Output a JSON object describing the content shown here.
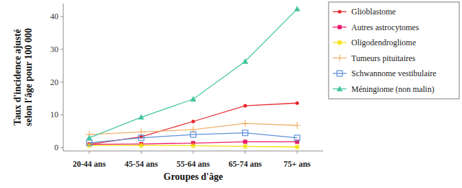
{
  "chart_data": {
    "type": "line",
    "x_label": "Groupes d'âge",
    "y_label": "Taux d'incidence ajusté selon l'âge pour 100 000",
    "categories": [
      "20-44 ans",
      "45-54 ans",
      "55-64 ans",
      "65-74 ans",
      "75+ ans"
    ],
    "series": [
      {
        "name": "Glioblastome",
        "color": "#e8262d",
        "marker": "circle",
        "values": [
          1.0,
          3.3,
          8.0,
          12.8,
          13.6
        ]
      },
      {
        "name": "Autres astrocytomes",
        "color": "#e8176b",
        "marker": "square",
        "values": [
          1.0,
          1.1,
          1.4,
          1.8,
          1.8
        ]
      },
      {
        "name": "Oligodendrogliome",
        "color": "#f2e200",
        "marker": "star",
        "values": [
          0.7,
          0.7,
          0.6,
          0.4,
          0.2
        ]
      },
      {
        "name": "Tumeurs pituitaires",
        "color": "#f0b06a",
        "marker": "plus",
        "values": [
          4.0,
          4.8,
          5.5,
          7.4,
          6.8
        ]
      },
      {
        "name": "Schwannome vestibulaire",
        "color": "#5a8fd6",
        "marker": "square-open",
        "values": [
          1.5,
          3.0,
          4.0,
          4.5,
          3.0
        ]
      },
      {
        "name": "Méningiome (non malin)",
        "color": "#45c6a0",
        "marker": "triangle",
        "values": [
          3.0,
          9.3,
          14.8,
          26.3,
          42.3
        ]
      }
    ],
    "ylim": [
      -1,
      44
    ],
    "yticks": [
      0,
      10,
      20,
      30,
      40
    ],
    "grid": false,
    "legend": "right"
  }
}
